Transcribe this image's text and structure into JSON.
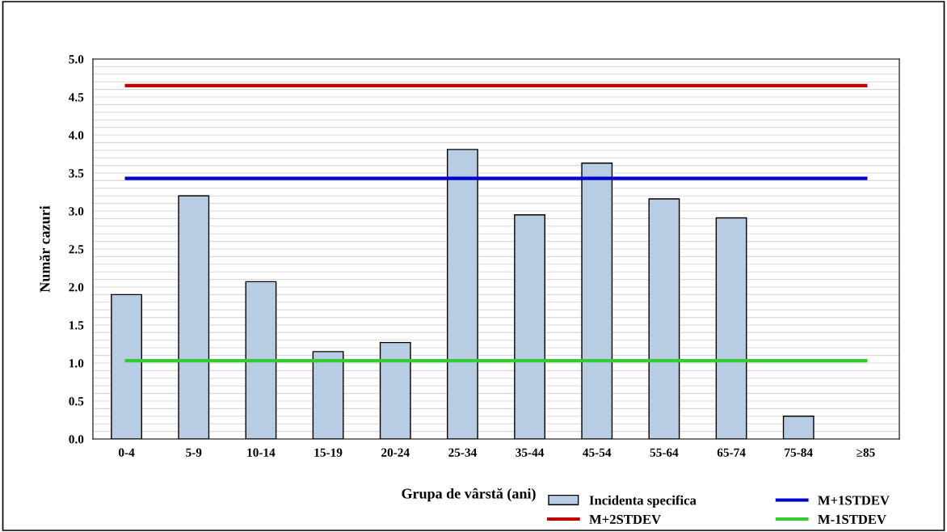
{
  "chart_data": {
    "type": "bar",
    "xlabel": "Grupa de vârstă (ani)",
    "ylabel": "Număr cazuri",
    "categories": [
      "0-4",
      "5-9",
      "10-14",
      "15-19",
      "20-24",
      "25-34",
      "35-44",
      "45-54",
      "55-64",
      "65-74",
      "75-84",
      "≥85"
    ],
    "series": [
      {
        "name": "Incidenta specifica",
        "color": "#b8cce4",
        "values": [
          1.9,
          3.2,
          2.07,
          1.15,
          1.27,
          3.81,
          2.95,
          3.63,
          3.16,
          2.91,
          0.3,
          null
        ]
      },
      {
        "name": "M+2STDEV",
        "type": "line",
        "color": "#c00000",
        "values": [
          4.65,
          4.65,
          4.65,
          4.65,
          4.65,
          4.65,
          4.65,
          4.65,
          4.65,
          4.65,
          4.65,
          4.65
        ]
      },
      {
        "name": "M+1STDEV",
        "type": "line",
        "color": "#0000cc",
        "values": [
          3.43,
          3.43,
          3.43,
          3.43,
          3.43,
          3.43,
          3.43,
          3.43,
          3.43,
          3.43,
          3.43,
          3.43
        ]
      },
      {
        "name": "M-1STDEV",
        "type": "line",
        "color": "#33cc33",
        "values": [
          1.03,
          1.03,
          1.03,
          1.03,
          1.03,
          1.03,
          1.03,
          1.03,
          1.03,
          1.03,
          1.03,
          1.03
        ]
      }
    ],
    "ylim": [
      0,
      5
    ],
    "yticks": [
      {
        "value": 0,
        "label": "0.0"
      },
      {
        "value": 0.1,
        "label": null
      },
      {
        "value": 0.2,
        "label": null
      },
      {
        "value": 0.3,
        "label": null
      },
      {
        "value": 0.4,
        "label": null
      },
      {
        "value": 0.5,
        "label": "0.5"
      },
      {
        "value": 0.6,
        "label": null
      },
      {
        "value": 0.7,
        "label": null
      },
      {
        "value": 0.8,
        "label": null
      },
      {
        "value": 0.9,
        "label": null
      },
      {
        "value": 1,
        "label": "1.0"
      },
      {
        "value": 1.1,
        "label": null
      },
      {
        "value": 1.2,
        "label": null
      },
      {
        "value": 1.3,
        "label": null
      },
      {
        "value": 1.4,
        "label": null
      },
      {
        "value": 1.5,
        "label": "1.5"
      },
      {
        "value": 1.6,
        "label": null
      },
      {
        "value": 1.7,
        "label": null
      },
      {
        "value": 1.8,
        "label": null
      },
      {
        "value": 1.9,
        "label": null
      },
      {
        "value": 2,
        "label": "2.0"
      },
      {
        "value": 2.1,
        "label": null
      },
      {
        "value": 2.2,
        "label": null
      },
      {
        "value": 2.3,
        "label": null
      },
      {
        "value": 2.4,
        "label": null
      },
      {
        "value": 2.5,
        "label": "2.5"
      },
      {
        "value": 2.6,
        "label": null
      },
      {
        "value": 2.7,
        "label": null
      },
      {
        "value": 2.8,
        "label": null
      },
      {
        "value": 2.9,
        "label": null
      },
      {
        "value": 3,
        "label": "3.0"
      },
      {
        "value": 3.1,
        "label": null
      },
      {
        "value": 3.2,
        "label": null
      },
      {
        "value": 3.3,
        "label": null
      },
      {
        "value": 3.4,
        "label": null
      },
      {
        "value": 3.5,
        "label": "3.5"
      },
      {
        "value": 3.6,
        "label": null
      },
      {
        "value": 3.7,
        "label": null
      },
      {
        "value": 3.8,
        "label": null
      },
      {
        "value": 3.9,
        "label": null
      },
      {
        "value": 4,
        "label": "4.0"
      },
      {
        "value": 4.1,
        "label": null
      },
      {
        "value": 4.2,
        "label": null
      },
      {
        "value": 4.3,
        "label": null
      },
      {
        "value": 4.4,
        "label": null
      },
      {
        "value": 4.5,
        "label": "4.5"
      },
      {
        "value": 4.6,
        "label": null
      },
      {
        "value": 4.7,
        "label": null
      },
      {
        "value": 4.8,
        "label": null
      },
      {
        "value": 4.9,
        "label": null
      },
      {
        "value": 5,
        "label": "5.0"
      }
    ],
    "grid": "y",
    "legend": "bottom",
    "marker": "none",
    "line_style": "solid"
  }
}
